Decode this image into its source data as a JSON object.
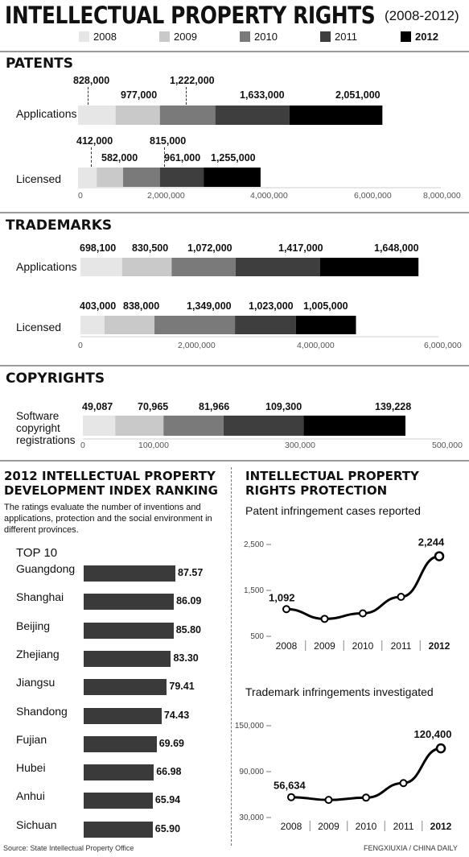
{
  "title": "INTELLECTUAL PROPERTY RIGHTS",
  "title_years": "(2008-2012)",
  "legend": [
    {
      "label": "2008",
      "color": "#e6e6e6"
    },
    {
      "label": "2009",
      "color": "#c9c9c9"
    },
    {
      "label": "2010",
      "color": "#7a7a7a"
    },
    {
      "label": "2011",
      "color": "#3e3e3e"
    },
    {
      "label": "2012",
      "color": "#000000"
    }
  ],
  "sections": {
    "patents": "PATENTS",
    "trademarks": "TRADEMARKS",
    "copyrights": "COPYRIGHTS"
  },
  "footer": {
    "source": "Source: State Intellectual Property Office",
    "credit": "FENGXIUXIA / CHINA DAILY"
  },
  "ranking": {
    "title_line1": "2012 INTELLECTUAL PROPERTY",
    "title_line2": "DEVELOPMENT INDEX RANKING",
    "description": "The ratings evaluate the number of inventions and applications, protection and the social environment in different provinces.",
    "top_label": "TOP 10"
  },
  "protection": {
    "title_line1": "INTELLECTUAL PROPERTY",
    "title_line2": "RIGHTS PROTECTION"
  },
  "chart_data": [
    {
      "type": "bar",
      "stacked": true,
      "orientation": "horizontal",
      "section": "PATENTS",
      "categories": [
        "Applications",
        "Licensed"
      ],
      "series": [
        {
          "name": "2008",
          "values": [
            828000,
            412000
          ],
          "labels": [
            "828,000",
            "412,000"
          ]
        },
        {
          "name": "2009",
          "values": [
            977000,
            582000
          ],
          "labels": [
            "977,000",
            "582,000"
          ]
        },
        {
          "name": "2010",
          "values": [
            1222000,
            815000
          ],
          "labels": [
            "1,222,000",
            "815,000"
          ]
        },
        {
          "name": "2011",
          "values": [
            1633000,
            961000
          ],
          "labels": [
            "1,633,000",
            "961,000"
          ]
        },
        {
          "name": "2012",
          "values": [
            2051000,
            1255000
          ],
          "labels": [
            "2,051,000",
            "1,255,000"
          ]
        }
      ],
      "xlim": [
        0,
        8000000
      ],
      "ticks": [
        "0",
        "2,000,000",
        "4,000,000",
        "6,000,000",
        "8,000,000"
      ]
    },
    {
      "type": "bar",
      "stacked": true,
      "orientation": "horizontal",
      "section": "TRADEMARKS",
      "categories": [
        "Applications",
        "Licensed"
      ],
      "series": [
        {
          "name": "2008",
          "values": [
            698100,
            403000
          ],
          "labels": [
            "698,100",
            "403,000"
          ]
        },
        {
          "name": "2009",
          "values": [
            830500,
            838000
          ],
          "labels": [
            "830,500",
            "838,000"
          ]
        },
        {
          "name": "2010",
          "values": [
            1072000,
            1349000
          ],
          "labels": [
            "1,072,000",
            "1,349,000"
          ]
        },
        {
          "name": "2011",
          "values": [
            1417000,
            1023000
          ],
          "labels": [
            "1,417,000",
            "1,023,000"
          ]
        },
        {
          "name": "2012",
          "values": [
            1648000,
            1005000
          ],
          "labels": [
            "1,648,000",
            "1,005,000"
          ]
        }
      ],
      "xlim": [
        0,
        6000000
      ],
      "ticks": [
        "0",
        "2,000,000",
        "4,000,000",
        "6,000,000"
      ]
    },
    {
      "type": "bar",
      "stacked": true,
      "orientation": "horizontal",
      "section": "COPYRIGHTS",
      "categories": [
        "Software copyright registrations"
      ],
      "category_lines": [
        "Software",
        "copyright",
        "registrations"
      ],
      "series": [
        {
          "name": "2008",
          "values": [
            49087
          ],
          "labels": [
            "49,087"
          ]
        },
        {
          "name": "2009",
          "values": [
            70965
          ],
          "labels": [
            "70,965"
          ]
        },
        {
          "name": "2010",
          "values": [
            81966
          ],
          "labels": [
            "81,966"
          ]
        },
        {
          "name": "2011",
          "values": [
            109300
          ],
          "labels": [
            "109,300"
          ]
        },
        {
          "name": "2012",
          "values": [
            139228
          ],
          "labels": [
            "139,228"
          ]
        }
      ],
      "xlim": [
        0,
        500000
      ],
      "ticks": [
        "0",
        "100,000",
        "300,000",
        "500,000"
      ],
      "tick_values": [
        0,
        100000,
        300000,
        500000
      ]
    },
    {
      "type": "bar",
      "orientation": "horizontal",
      "title": "2012 INTELLECTUAL PROPERTY DEVELOPMENT INDEX RANKING",
      "categories": [
        "Guangdong",
        "Shanghai",
        "Beijing",
        "Zhejiang",
        "Jiangsu",
        "Shandong",
        "Fujian",
        "Hubei",
        "Anhui",
        "Sichuan"
      ],
      "values": [
        87.57,
        86.09,
        85.8,
        83.3,
        79.41,
        74.43,
        69.69,
        66.98,
        65.94,
        65.9
      ],
      "labels": [
        "87.57",
        "86.09",
        "85.80",
        "83.30",
        "79.41",
        "74.43",
        "69.69",
        "66.98",
        "65.94",
        "65.90"
      ]
    },
    {
      "type": "line",
      "title": "Patent infringement cases reported",
      "x": [
        "2008",
        "2009",
        "2010",
        "2011",
        "2012"
      ],
      "y": [
        1092,
        880,
        1000,
        1360,
        2244
      ],
      "point_labels": [
        "1,092",
        "",
        "",
        "",
        "2,244"
      ],
      "ylim": [
        500,
        2500
      ],
      "yticks": [
        "500",
        "1,500",
        "2,500"
      ],
      "ytick_values": [
        500,
        1500,
        2500
      ]
    },
    {
      "type": "line",
      "title": "Trademark infringements investigated",
      "x": [
        "2008",
        "2009",
        "2010",
        "2011",
        "2012"
      ],
      "y": [
        56634,
        53000,
        56000,
        75000,
        120400
      ],
      "point_labels": [
        "56,634",
        "",
        "",
        "",
        "120,400"
      ],
      "ylim": [
        30000,
        150000
      ],
      "yticks": [
        "30,000",
        "90,000",
        "150,000"
      ],
      "ytick_values": [
        30000,
        90000,
        150000
      ]
    }
  ]
}
